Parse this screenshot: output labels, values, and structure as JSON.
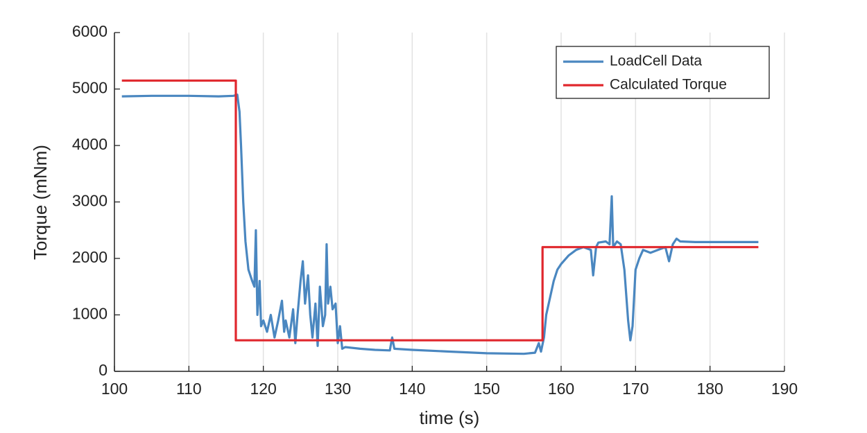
{
  "chart_data": {
    "type": "line",
    "xlabel": "time (s)",
    "ylabel": "Torque (mNm)",
    "xlim": [
      100,
      190
    ],
    "ylim": [
      0,
      6000
    ],
    "xticks": [
      100,
      110,
      120,
      130,
      140,
      150,
      160,
      170,
      180,
      190
    ],
    "yticks": [
      0,
      1000,
      2000,
      3000,
      4000,
      5000,
      6000
    ],
    "xgrid": true,
    "legend": "upper right",
    "series": [
      {
        "name": "LoadCell Data",
        "color": "#4a87c0",
        "x": [
          101,
          105,
          110,
          114,
          116,
          116.5,
          116.8,
          117,
          117.3,
          117.6,
          118,
          118.5,
          118.8,
          119,
          119.2,
          119.5,
          119.7,
          120,
          120.5,
          121,
          121.5,
          122,
          122.5,
          122.8,
          123,
          123.5,
          124,
          124.3,
          124.6,
          125,
          125.3,
          125.6,
          126,
          126.3,
          126.6,
          127,
          127.3,
          127.6,
          128,
          128.3,
          128.5,
          128.7,
          129,
          129.3,
          129.7,
          130,
          130.3,
          130.6,
          131,
          133,
          135,
          137,
          137.3,
          137.6,
          140,
          145,
          150,
          155,
          156.5,
          157,
          157.3,
          157.7,
          158,
          158.5,
          159,
          159.5,
          160,
          161,
          162,
          163,
          164,
          164.3,
          164.7,
          165,
          166,
          166.5,
          166.8,
          167,
          167.5,
          168,
          168.5,
          169,
          169.3,
          169.6,
          170,
          170.5,
          171,
          172,
          173,
          174,
          174.5,
          175,
          175.5,
          176,
          178,
          180,
          183,
          186.5
        ],
        "values": [
          4870,
          4880,
          4880,
          4870,
          4880,
          4900,
          4600,
          4000,
          3000,
          2300,
          1800,
          1600,
          1500,
          2500,
          1000,
          1600,
          800,
          900,
          700,
          1000,
          600,
          900,
          1250,
          700,
          900,
          600,
          1100,
          500,
          1000,
          1600,
          1950,
          1200,
          1700,
          1000,
          600,
          1200,
          450,
          1500,
          800,
          1000,
          2250,
          1200,
          1500,
          1100,
          1200,
          500,
          800,
          400,
          430,
          400,
          380,
          370,
          600,
          400,
          380,
          350,
          320,
          310,
          330,
          500,
          350,
          600,
          1000,
          1300,
          1600,
          1800,
          1900,
          2050,
          2150,
          2200,
          2150,
          1700,
          2200,
          2280,
          2300,
          2250,
          3100,
          2200,
          2300,
          2250,
          1800,
          900,
          550,
          800,
          1800,
          2000,
          2150,
          2100,
          2150,
          2200,
          1950,
          2250,
          2350,
          2300,
          2290,
          2290,
          2290,
          2290
        ]
      },
      {
        "name": "Calculated Torque",
        "color": "#e0272d",
        "x": [
          101,
          116.3,
          116.3,
          157.5,
          157.5,
          186.5
        ],
        "values": [
          5150,
          5150,
          550,
          550,
          2200,
          2200
        ]
      }
    ]
  }
}
